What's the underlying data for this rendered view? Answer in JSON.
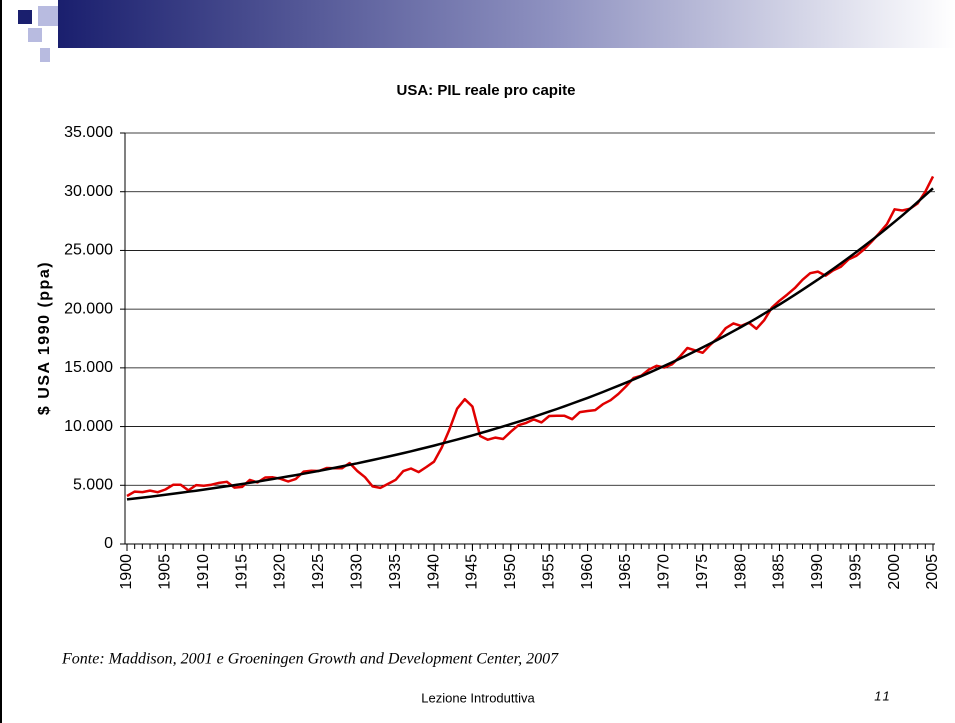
{
  "chart_data": {
    "type": "line",
    "title": "USA: PIL reale pro capite",
    "y_label": "$ USA 1990 (ppa)",
    "source": "Fonte: Maddison, 2001 e Groeningen Growth and Development Center, 2007",
    "x": [
      1900,
      1901,
      1902,
      1903,
      1904,
      1905,
      1906,
      1907,
      1908,
      1909,
      1910,
      1911,
      1912,
      1913,
      1914,
      1915,
      1916,
      1917,
      1918,
      1919,
      1920,
      1921,
      1922,
      1923,
      1924,
      1925,
      1926,
      1927,
      1928,
      1929,
      1930,
      1931,
      1932,
      1933,
      1934,
      1935,
      1936,
      1937,
      1938,
      1939,
      1940,
      1941,
      1942,
      1943,
      1944,
      1945,
      1946,
      1947,
      1948,
      1949,
      1950,
      1951,
      1952,
      1953,
      1954,
      1955,
      1956,
      1957,
      1958,
      1959,
      1960,
      1961,
      1962,
      1963,
      1964,
      1965,
      1966,
      1967,
      1968,
      1969,
      1970,
      1971,
      1972,
      1973,
      1974,
      1975,
      1976,
      1977,
      1978,
      1979,
      1980,
      1981,
      1982,
      1983,
      1984,
      1985,
      1986,
      1987,
      1988,
      1989,
      1990,
      1991,
      1992,
      1993,
      1994,
      1995,
      1996,
      1997,
      1998,
      1999,
      2000,
      2001,
      2002,
      2003,
      2004,
      2005
    ],
    "series": [
      {
        "color": "#e00000",
        "values": [
          4091,
          4464,
          4420,
          4544,
          4413,
          4642,
          5038,
          5047,
          4561,
          5017,
          4964,
          5046,
          5201,
          5301,
          4799,
          4864,
          5459,
          5248,
          5659,
          5680,
          5552,
          5323,
          5540,
          6164,
          6233,
          6220,
          6472,
          6446,
          6445,
          6899,
          6213,
          5691,
          4908,
          4777,
          5114,
          5467,
          6204,
          6430,
          6126,
          6561,
          7010,
          8206,
          9741,
          11518,
          12333,
          11709,
          9197,
          8886,
          9065,
          8944,
          9561,
          10116,
          10316,
          10613,
          10359,
          10897,
          10914,
          10920,
          10631,
          11230,
          11328,
          11402,
          11905,
          12242,
          12773,
          13419,
          14134,
          14330,
          14863,
          15179,
          15030,
          15304,
          15944,
          16689,
          16491,
          16284,
          16975,
          17567,
          18373,
          18789,
          18577,
          18856,
          18325,
          19047,
          20123,
          20717,
          21236,
          21788,
          22499,
          23059,
          23201,
          22849,
          23298,
          23616,
          24235,
          24537,
          25080,
          25754,
          26473,
          27234,
          28500,
          28400,
          28550,
          29000,
          30000,
          31300
        ]
      },
      {
        "color": "#000000",
        "values": [
          3800,
          3876,
          3953,
          4032,
          4113,
          4195,
          4279,
          4364,
          4452,
          4541,
          4631,
          4724,
          4818,
          4915,
          5013,
          5112,
          5214,
          5318,
          5425,
          5533,
          5643,
          5756,
          5871,
          5988,
          6108,
          6229,
          6354,
          6481,
          6610,
          6742,
          6876,
          7014,
          7154,
          7297,
          7443,
          7591,
          7743,
          7898,
          8056,
          8217,
          8379,
          8547,
          8718,
          8892,
          9070,
          9250,
          9435,
          9624,
          9816,
          10012,
          10211,
          10415,
          10623,
          10836,
          11053,
          11272,
          11497,
          11727,
          11962,
          12201,
          12443,
          12692,
          12946,
          13205,
          13469,
          13736,
          14011,
          14291,
          14577,
          14868,
          15163,
          15466,
          15775,
          16091,
          16413,
          16738,
          17073,
          17414,
          17763,
          18118,
          18477,
          18847,
          19224,
          19608,
          20000,
          20397,
          20805,
          21221,
          21646,
          22079,
          22516,
          22966,
          23426,
          23894,
          24372,
          24855,
          25352,
          25859,
          26376,
          26904,
          27437,
          27986,
          28545,
          29116,
          29699,
          30288
        ]
      }
    ],
    "xlim": [
      1900,
      2005
    ],
    "xticks": [
      1900,
      1905,
      1910,
      1915,
      1920,
      1925,
      1930,
      1935,
      1940,
      1945,
      1950,
      1955,
      1960,
      1965,
      1970,
      1975,
      1980,
      1985,
      1990,
      1995,
      2000,
      2005
    ],
    "ylim": [
      0,
      35000
    ],
    "yticks": [
      0,
      {
        "value": 5000,
        "label": "5.000"
      },
      {
        "value": 10000,
        "label": "10.000"
      },
      {
        "value": 15000,
        "label": "15.000"
      },
      {
        "value": 20000,
        "label": "20.000"
      },
      {
        "value": 25000,
        "label": "25.000"
      },
      {
        "value": 30000,
        "label": "30.000"
      },
      {
        "value": 35000,
        "label": "35.000"
      }
    ],
    "grid": true
  },
  "footer": {
    "text": "Lezione Introduttiva",
    "page_number": 11
  }
}
